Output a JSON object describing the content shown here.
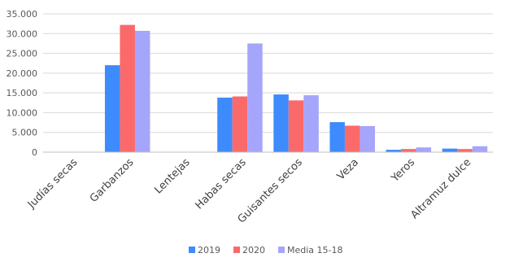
{
  "chart_data": {
    "type": "bar",
    "title": "",
    "xlabel": "",
    "ylabel": "",
    "categories": [
      "Judías secas",
      "Garbanzos",
      "Lentejas",
      "Habas secas",
      "Guisantes secos",
      "Veza",
      "Yeros",
      "Altramuz dulce"
    ],
    "y_tick_labels": [
      "0",
      "5.000",
      "10.000",
      "15.000",
      "20.000",
      "25.000",
      "30.000",
      "35.000"
    ],
    "ylim": [
      0,
      35000
    ],
    "grid": true,
    "legend_position": "bottom",
    "series": [
      {
        "name": "2019",
        "color": "#3d8bfd",
        "values": [
          80,
          22000,
          80,
          13800,
          14600,
          7600,
          600,
          900
        ]
      },
      {
        "name": "2020",
        "color": "#fb6a6a",
        "values": [
          60,
          32200,
          60,
          14100,
          13100,
          6700,
          800,
          800
        ]
      },
      {
        "name": "Media  15-18",
        "color": "#a5a5fb",
        "values": [
          30,
          30700,
          30,
          27500,
          14400,
          6600,
          1200,
          1500
        ]
      }
    ]
  }
}
